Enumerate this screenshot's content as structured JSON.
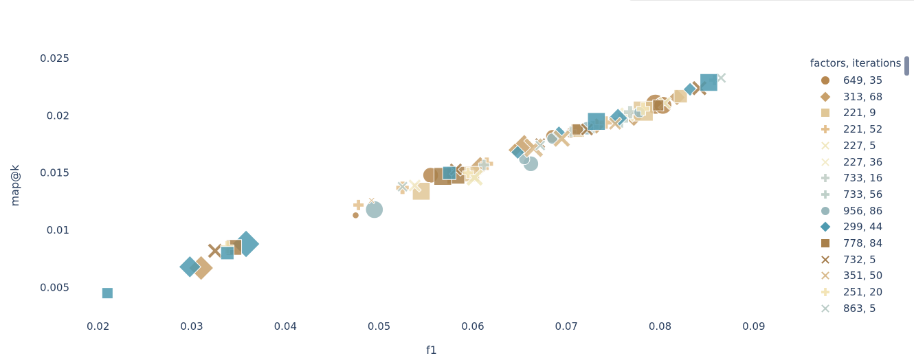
{
  "chart_data": {
    "type": "scatter",
    "title": "",
    "xlabel": "f1",
    "ylabel": "map@k",
    "xlim": [
      0.0165,
      0.095
    ],
    "ylim": [
      0.0025,
      0.0265
    ],
    "xticks": [
      0.02,
      0.03,
      0.04,
      0.05,
      0.06,
      0.07,
      0.08,
      0.09
    ],
    "xtick_labels": [
      "0.02",
      "0.03",
      "0.04",
      "0.05",
      "0.06",
      "0.07",
      "0.08",
      "0.09"
    ],
    "yticks": [
      0.005,
      0.01,
      0.015,
      0.02,
      0.025
    ],
    "ytick_labels": [
      "0.005",
      "0.01",
      "0.015",
      "0.02",
      "0.025"
    ],
    "grid": false,
    "legend_title": "factors, iterations",
    "legend_position": "right",
    "series": [
      {
        "name": "649, 35",
        "symbol": "circle",
        "color": "#b6874f",
        "points": [
          [
            0.0475,
            0.0113,
            6
          ],
          [
            0.0555,
            0.0148,
            14
          ],
          [
            0.0685,
            0.0182,
            12
          ],
          [
            0.0795,
            0.021,
            18
          ],
          [
            0.0803,
            0.0209,
            16
          ],
          [
            0.0705,
            0.0185,
            10
          ]
        ]
      },
      {
        "name": "313, 68",
        "symbol": "diamond",
        "color": "#c8a06a",
        "points": [
          [
            0.031,
            0.0067,
            18
          ],
          [
            0.0655,
            0.0174,
            16
          ],
          [
            0.0608,
            0.0156,
            14
          ],
          [
            0.0732,
            0.0191,
            12
          ],
          [
            0.0772,
            0.0199,
            14
          ],
          [
            0.0818,
            0.0216,
            12
          ],
          [
            0.0645,
            0.017,
            10
          ]
        ]
      },
      {
        "name": "221, 9",
        "symbol": "square",
        "color": "#e0c797",
        "points": [
          [
            0.0545,
            0.0134,
            16
          ],
          [
            0.0782,
            0.0204,
            18
          ],
          [
            0.0599,
            0.0149,
            14
          ],
          [
            0.0712,
            0.0187,
            12
          ],
          [
            0.0822,
            0.0217,
            12
          ]
        ]
      },
      {
        "name": "221, 52",
        "symbol": "cross",
        "color": "#e3bf8c",
        "points": [
          [
            0.0478,
            0.0122,
            10
          ],
          [
            0.0525,
            0.0137,
            12
          ],
          [
            0.0615,
            0.0158,
            12
          ],
          [
            0.0742,
            0.0194,
            12
          ]
        ]
      },
      {
        "name": "227, 5",
        "symbol": "x",
        "color": "#f0e7bd",
        "points": [
          [
            0.0602,
            0.0146,
            16
          ],
          [
            0.0695,
            0.0179,
            14
          ],
          [
            0.0805,
            0.0211,
            12
          ]
        ]
      },
      {
        "name": "227, 36",
        "symbol": "x",
        "color": "#f3ebc9",
        "points": [
          [
            0.0538,
            0.0139,
            12
          ],
          [
            0.0765,
            0.0201,
            14
          ],
          [
            0.0342,
            0.0085,
            10
          ]
        ]
      },
      {
        "name": "733, 16",
        "symbol": "cross",
        "color": "#c7d3cc",
        "points": [
          [
            0.0768,
            0.0203,
            12
          ],
          [
            0.0858,
            0.0231,
            10
          ],
          [
            0.0705,
            0.0186,
            10
          ]
        ]
      },
      {
        "name": "733, 56",
        "symbol": "cross",
        "color": "#bfd0c9",
        "points": [
          [
            0.0758,
            0.0196,
            14
          ],
          [
            0.0728,
            0.019,
            12
          ],
          [
            0.0612,
            0.0157,
            10
          ]
        ]
      },
      {
        "name": "956, 86",
        "symbol": "circle",
        "color": "#98b7bb",
        "points": [
          [
            0.0495,
            0.0118,
            16
          ],
          [
            0.0662,
            0.0158,
            14
          ],
          [
            0.0722,
            0.0189,
            12
          ],
          [
            0.0655,
            0.0162,
            10
          ],
          [
            0.0778,
            0.0203,
            10
          ],
          [
            0.0685,
            0.018,
            10
          ]
        ]
      },
      {
        "name": "299, 44",
        "symbol": "diamond",
        "color": "#4e9ab0",
        "points": [
          [
            0.0298,
            0.0068,
            16
          ],
          [
            0.0358,
            0.0088,
            20
          ],
          [
            0.0692,
            0.0185,
            10
          ],
          [
            0.0648,
            0.0168,
            10
          ],
          [
            0.0755,
            0.0198,
            14
          ],
          [
            0.0832,
            0.0223,
            10
          ]
        ]
      },
      {
        "name": "778, 84",
        "symbol": "square",
        "color": "#a8804b",
        "points": [
          [
            0.0345,
            0.0085,
            14
          ],
          [
            0.0582,
            0.0148,
            16
          ],
          [
            0.0568,
            0.0147,
            16
          ],
          [
            0.0712,
            0.0188,
            10
          ],
          [
            0.0798,
            0.0209,
            10
          ]
        ]
      },
      {
        "name": "732, 5",
        "symbol": "x",
        "color": "#a37a48",
        "points": [
          [
            0.0325,
            0.0082,
            14
          ],
          [
            0.0582,
            0.0153,
            12
          ],
          [
            0.0842,
            0.0224,
            14
          ],
          [
            0.0722,
            0.0188,
            12
          ],
          [
            0.0672,
            0.0176,
            10
          ]
        ]
      },
      {
        "name": "351, 50",
        "symbol": "x",
        "color": "#d8b98a",
        "points": [
          [
            0.0665,
            0.0172,
            18
          ],
          [
            0.0695,
            0.018,
            16
          ],
          [
            0.0492,
            0.0126,
            6
          ],
          [
            0.0752,
            0.0193,
            12
          ]
        ]
      },
      {
        "name": "251, 20",
        "symbol": "cross",
        "color": "#f3e4b6",
        "points": [
          [
            0.0338,
            0.0085,
            12
          ],
          [
            0.0782,
            0.0206,
            12
          ],
          [
            0.0595,
            0.015,
            10
          ]
        ]
      },
      {
        "name": "863, 5",
        "symbol": "x",
        "color": "#b9cbc6",
        "points": [
          [
            0.0525,
            0.0138,
            10
          ],
          [
            0.0865,
            0.0233,
            10
          ],
          [
            0.0672,
            0.0174,
            10
          ]
        ]
      },
      {
        "name": "",
        "symbol": "square",
        "color": "#4e9ab0",
        "points": [
          [
            0.021,
            0.0045,
            10
          ],
          [
            0.0338,
            0.008,
            12
          ],
          [
            0.0732,
            0.0195,
            16
          ],
          [
            0.0852,
            0.0229,
            16
          ],
          [
            0.0575,
            0.015,
            12
          ]
        ]
      }
    ]
  }
}
